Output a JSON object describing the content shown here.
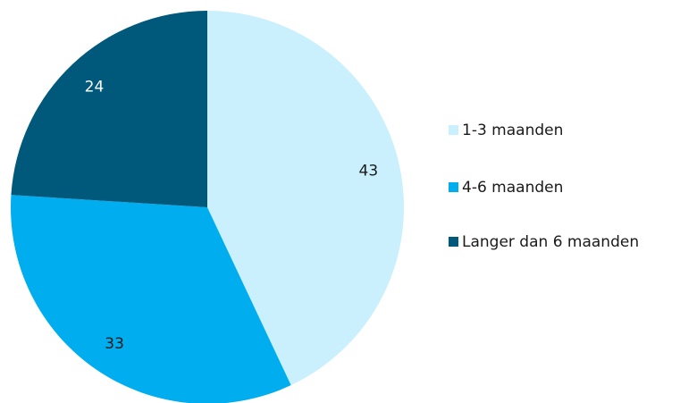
{
  "chart_data": {
    "type": "pie",
    "categories": [
      "1-3 maanden",
      "4-6 maanden",
      "Langer dan 6 maanden"
    ],
    "values": [
      43,
      33,
      24
    ],
    "colors": [
      "#c9f0fc",
      "#00aeef",
      "#00587a"
    ],
    "label_colors": [
      "#1a1a1a",
      "#1a1a1a",
      "#ffffff"
    ],
    "legend": "right"
  }
}
